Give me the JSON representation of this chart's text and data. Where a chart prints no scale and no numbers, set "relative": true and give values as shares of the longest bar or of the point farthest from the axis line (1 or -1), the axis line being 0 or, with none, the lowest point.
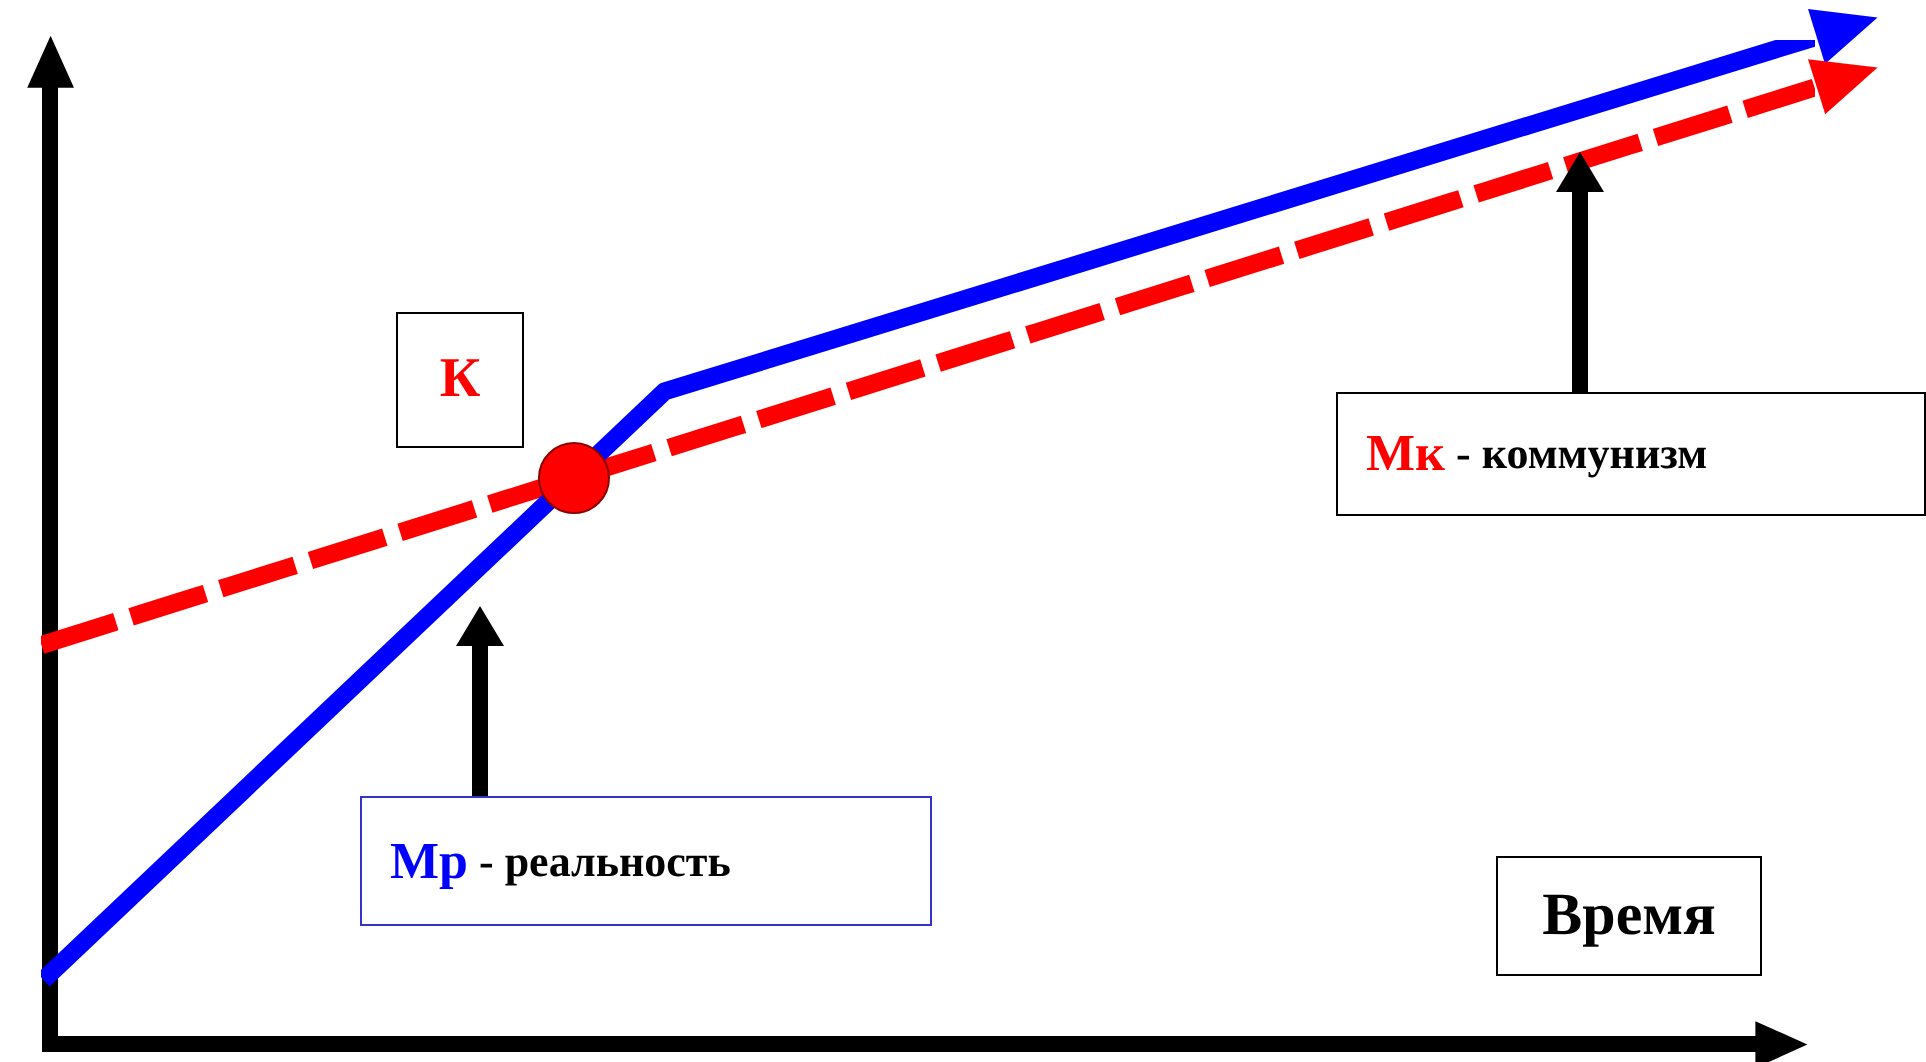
{
  "chart_data": {
    "type": "line",
    "xlabel": "Время",
    "relative": true,
    "marker": "none",
    "legend": false,
    "categories": [
      null,
      null,
      null,
      null,
      null,
      null,
      null,
      null,
      null,
      null,
      null,
      null,
      null,
      null,
      null,
      null,
      null,
      null,
      null,
      null,
      null,
      null,
      null,
      null,
      null,
      null,
      null,
      null,
      null,
      null,
      null,
      null,
      null,
      null,
      null,
      null,
      null,
      null,
      null,
      null,
      null
    ],
    "annotations": [
      "К"
    ],
    "series": [
      {
        "name": "Мр - реальность",
        "color": "#0000ff",
        "values": [
          0.07,
          null,
          null,
          null,
          null,
          null,
          null,
          null,
          null,
          null,
          null,
          null,
          null,
          null,
          0.65,
          null,
          null,
          null,
          null,
          null,
          null,
          null,
          null,
          null,
          null,
          null,
          null,
          null,
          null,
          null,
          null,
          null,
          null,
          null,
          null,
          null,
          null,
          null,
          null,
          null,
          1
        ]
      },
      {
        "name": "Мк - коммунизм",
        "color": "#ff0000",
        "line_style": "dashed",
        "values": [
          0.4,
          null,
          null,
          null,
          null,
          null,
          null,
          null,
          null,
          null,
          null,
          null,
          null,
          null,
          null,
          null,
          null,
          null,
          null,
          null,
          null,
          null,
          null,
          null,
          null,
          null,
          null,
          null,
          null,
          null,
          null,
          null,
          null,
          null,
          null,
          null,
          null,
          null,
          null,
          null,
          0.95
        ]
      }
    ]
  }
}
